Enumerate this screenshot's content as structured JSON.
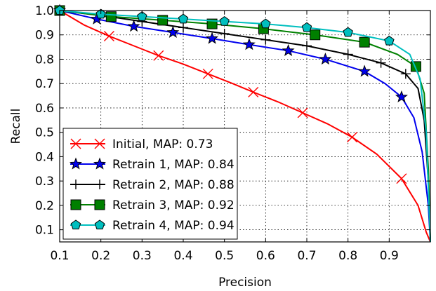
{
  "chart_data": {
    "type": "line",
    "xlabel": "Precision",
    "ylabel": "Recall",
    "xlim": [
      0.1,
      1.0
    ],
    "ylim": [
      0.05,
      1.0
    ],
    "xticks": [
      "0.1",
      "0.2",
      "0.3",
      "0.4",
      "0.5",
      "0.6",
      "0.7",
      "0.8",
      "0.9"
    ],
    "yticks": [
      "0.1",
      "0.2",
      "0.3",
      "0.4",
      "0.5",
      "0.6",
      "0.7",
      "0.8",
      "0.9",
      "1.0"
    ],
    "grid": true,
    "legend_position": "lower-left",
    "series": [
      {
        "name": "Initial, MAP: 0.73",
        "color": "#ff0000",
        "marker": "x",
        "x": [
          0.1,
          0.16,
          0.22,
          0.28,
          0.34,
          0.4,
          0.46,
          0.52,
          0.57,
          0.63,
          0.69,
          0.75,
          0.81,
          0.87,
          0.93,
          0.97,
          0.99,
          1.0
        ],
        "y": [
          1.0,
          0.94,
          0.895,
          0.855,
          0.815,
          0.78,
          0.74,
          0.7,
          0.665,
          0.625,
          0.58,
          0.535,
          0.48,
          0.41,
          0.31,
          0.2,
          0.09,
          0.05
        ],
        "marker_x": [
          0.22,
          0.34,
          0.46,
          0.57,
          0.69,
          0.81,
          0.93
        ],
        "marker_y": [
          0.895,
          0.815,
          0.74,
          0.665,
          0.58,
          0.48,
          0.31
        ]
      },
      {
        "name": "Retrain 1, MAP: 0.84",
        "color": "#0000ee",
        "marker": "star",
        "x": [
          0.1,
          0.19,
          0.28,
          0.375,
          0.47,
          0.56,
          0.655,
          0.745,
          0.84,
          0.89,
          0.93,
          0.96,
          0.98,
          0.995,
          1.0
        ],
        "y": [
          1.0,
          0.965,
          0.935,
          0.91,
          0.885,
          0.86,
          0.835,
          0.8,
          0.75,
          0.7,
          0.645,
          0.56,
          0.42,
          0.2,
          0.05
        ],
        "marker_x": [
          0.1,
          0.19,
          0.28,
          0.375,
          0.47,
          0.56,
          0.655,
          0.745,
          0.84,
          0.93
        ],
        "marker_y": [
          1.0,
          0.965,
          0.935,
          0.91,
          0.885,
          0.86,
          0.835,
          0.8,
          0.75,
          0.645
        ]
      },
      {
        "name": "Retrain 2, MAP: 0.88",
        "color": "#000000",
        "marker": "+",
        "x": [
          0.1,
          0.22,
          0.3,
          0.4,
          0.5,
          0.6,
          0.7,
          0.8,
          0.88,
          0.94,
          0.97,
          0.985,
          0.995,
          1.0
        ],
        "y": [
          1.0,
          0.975,
          0.955,
          0.93,
          0.905,
          0.88,
          0.855,
          0.82,
          0.785,
          0.74,
          0.68,
          0.55,
          0.3,
          0.05
        ],
        "marker_x": [
          0.22,
          0.3,
          0.4,
          0.5,
          0.6,
          0.7,
          0.8,
          0.88,
          0.94
        ],
        "marker_y": [
          0.975,
          0.955,
          0.93,
          0.905,
          0.88,
          0.855,
          0.82,
          0.785,
          0.74
        ]
      },
      {
        "name": "Retrain 3, MAP: 0.92",
        "color": "#008000",
        "marker": "square",
        "x": [
          0.1,
          0.225,
          0.35,
          0.47,
          0.595,
          0.72,
          0.84,
          0.92,
          0.965,
          0.985,
          0.995,
          1.0
        ],
        "y": [
          1.0,
          0.975,
          0.96,
          0.945,
          0.925,
          0.9,
          0.87,
          0.82,
          0.77,
          0.66,
          0.35,
          0.05
        ],
        "marker_x": [
          0.1,
          0.225,
          0.35,
          0.47,
          0.595,
          0.72,
          0.84,
          0.965
        ],
        "marker_y": [
          1.0,
          0.975,
          0.96,
          0.945,
          0.925,
          0.9,
          0.87,
          0.77
        ]
      },
      {
        "name": "Retrain 4, MAP: 0.94",
        "color": "#00bfbf",
        "marker": "pentagon",
        "x": [
          0.1,
          0.2,
          0.3,
          0.4,
          0.5,
          0.6,
          0.7,
          0.8,
          0.9,
          0.95,
          0.975,
          0.99,
          1.0
        ],
        "y": [
          1.0,
          0.985,
          0.975,
          0.965,
          0.955,
          0.945,
          0.93,
          0.91,
          0.875,
          0.82,
          0.72,
          0.5,
          0.05
        ],
        "marker_x": [
          0.1,
          0.2,
          0.3,
          0.4,
          0.5,
          0.6,
          0.7,
          0.8,
          0.9
        ],
        "marker_y": [
          1.0,
          0.985,
          0.975,
          0.965,
          0.955,
          0.945,
          0.93,
          0.91,
          0.875
        ]
      }
    ]
  }
}
